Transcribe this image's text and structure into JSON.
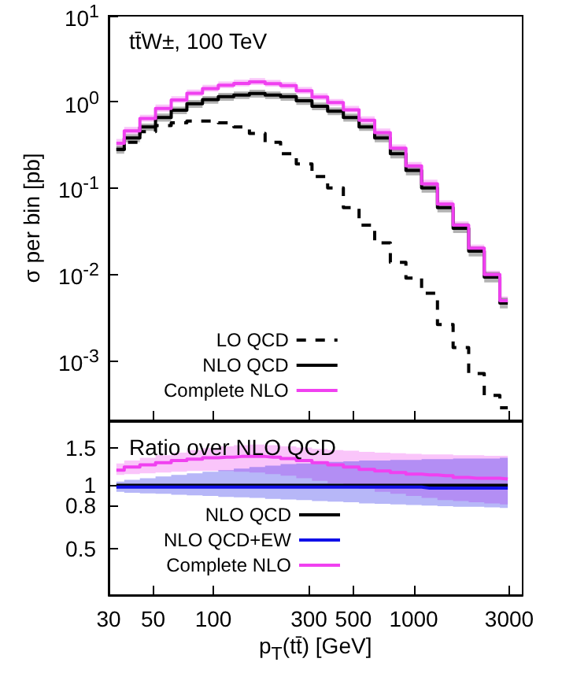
{
  "chart_data": [
    {
      "type": "step",
      "title": "tt̄W±, 100 TeV",
      "ylabel": "σ per bin [pb]",
      "log": "xy",
      "grid": false,
      "marker": "none",
      "legend": "bottom left",
      "tick_labels": "y",
      "xlim": [
        30,
        3500
      ],
      "xticks": [
        30,
        50,
        100,
        300,
        500,
        1000,
        3000
      ],
      "ylim": [
        0.0002,
        10
      ],
      "yticks": [
        {
          "value": 0.001,
          "label": "10$^{-3}$"
        },
        {
          "value": 0.01,
          "label": "10$^{-2}$"
        },
        {
          "value": 0.1,
          "label": "10$^{-1}$"
        },
        {
          "value": 1,
          "label": "10$^{0}$"
        },
        {
          "value": 10,
          "label": "10$^{1}$"
        }
      ],
      "x": [
        32.8,
        39.3,
        47.0,
        56.3,
        67.4,
        80.7,
        96.6,
        116,
        138,
        166,
        198,
        237,
        284,
        340,
        407,
        488,
        584,
        699,
        837,
        1000,
        1200,
        1440,
        1720,
        2060,
        2460,
        2950
      ],
      "series": [
        {
          "name": "LO QCD",
          "color": "#000000",
          "line_style": "dashed",
          "values": [
            0.28,
            0.34,
            0.45,
            0.53,
            0.57,
            0.6,
            0.6,
            0.57,
            0.51,
            0.43,
            0.34,
            0.25,
            0.19,
            0.136,
            0.1,
            0.059,
            0.037,
            0.023,
            0.0137,
            0.009,
            0.006,
            0.0026,
            0.0014,
            0.0007,
            0.00039,
            0.00028
          ]
        },
        {
          "name": "NLO QCD",
          "color": "#000000",
          "values": [
            0.28,
            0.38,
            0.51,
            0.66,
            0.8,
            0.95,
            1.06,
            1.15,
            1.2,
            1.25,
            1.2,
            1.15,
            1.03,
            0.89,
            0.78,
            0.66,
            0.51,
            0.38,
            0.25,
            0.16,
            0.1,
            0.059,
            0.034,
            0.0185,
            0.0092,
            0.0046
          ],
          "lower": [
            0.25,
            0.34,
            0.46,
            0.59,
            0.72,
            0.85,
            0.95,
            1.03,
            1.08,
            1.12,
            1.08,
            1.03,
            0.92,
            0.8,
            0.7,
            0.59,
            0.46,
            0.34,
            0.22,
            0.14,
            0.088,
            0.052,
            0.03,
            0.016,
            0.008,
            0.004
          ],
          "upper": [
            0.31,
            0.42,
            0.56,
            0.73,
            0.88,
            1.05,
            1.17,
            1.27,
            1.32,
            1.38,
            1.32,
            1.27,
            1.14,
            0.98,
            0.86,
            0.73,
            0.56,
            0.42,
            0.28,
            0.18,
            0.113,
            0.067,
            0.039,
            0.021,
            0.0106,
            0.0053
          ]
        },
        {
          "name": "Complete NLO",
          "color": "#f040f0",
          "values": [
            0.33,
            0.46,
            0.64,
            0.84,
            1.05,
            1.26,
            1.43,
            1.56,
            1.64,
            1.71,
            1.63,
            1.54,
            1.35,
            1.14,
            0.98,
            0.81,
            0.61,
            0.44,
            0.29,
            0.18,
            0.112,
            0.065,
            0.037,
            0.02,
            0.0099,
            0.0049
          ],
          "lower": [
            0.3,
            0.42,
            0.59,
            0.77,
            0.97,
            1.16,
            1.32,
            1.44,
            1.51,
            1.57,
            1.5,
            1.42,
            1.24,
            1.05,
            0.9,
            0.75,
            0.56,
            0.4,
            0.27,
            0.165,
            0.103,
            0.06,
            0.034,
            0.0184,
            0.0091,
            0.0045
          ],
          "upper": [
            0.37,
            0.51,
            0.71,
            0.93,
            1.16,
            1.39,
            1.58,
            1.72,
            1.81,
            1.89,
            1.8,
            1.7,
            1.49,
            1.26,
            1.08,
            0.9,
            0.68,
            0.49,
            0.32,
            0.2,
            0.125,
            0.072,
            0.041,
            0.022,
            0.011,
            0.0055
          ]
        }
      ]
    },
    {
      "type": "step",
      "title": "Ratio over NLO QCD",
      "xlabel": "p$_{T}$(tt̄) [GeV]",
      "log": "xy",
      "grid": false,
      "marker": "none",
      "legend": "bottom left",
      "xlim": [
        30,
        3500
      ],
      "xticks": [
        30,
        50,
        100,
        300,
        500,
        1000,
        3000
      ],
      "ylim": [
        0.3,
        2
      ],
      "yticks": [
        0.5,
        0.8,
        1,
        1.5
      ],
      "x": [
        32.8,
        39.3,
        47.0,
        56.3,
        67.4,
        80.7,
        96.6,
        116,
        138,
        166,
        198,
        237,
        284,
        340,
        407,
        488,
        584,
        699,
        837,
        1000,
        1200,
        1440,
        1720,
        2060,
        2460,
        2950
      ],
      "series": [
        {
          "name": "NLO QCD",
          "color": "#000000",
          "values": [
            1,
            1,
            1,
            1,
            1,
            1,
            1,
            1,
            1,
            1,
            1,
            1,
            1,
            1,
            1,
            1,
            1,
            1,
            1,
            1,
            1,
            1,
            1,
            1,
            1,
            1
          ]
        },
        {
          "name": "NLO QCD+EW",
          "color": "#1010e8",
          "values": [
            0.98,
            0.98,
            0.98,
            0.98,
            0.98,
            0.98,
            0.98,
            0.98,
            0.98,
            0.98,
            0.98,
            0.98,
            0.98,
            0.98,
            0.98,
            0.98,
            0.98,
            0.98,
            0.98,
            0.98,
            0.97,
            0.97,
            0.97,
            0.97,
            0.97,
            0.97
          ],
          "lower": [
            0.93,
            0.92,
            0.915,
            0.91,
            0.9,
            0.895,
            0.89,
            0.88,
            0.875,
            0.87,
            0.86,
            0.855,
            0.85,
            0.84,
            0.835,
            0.83,
            0.82,
            0.815,
            0.81,
            0.805,
            0.8,
            0.795,
            0.79,
            0.79,
            0.785,
            0.78
          ],
          "upper": [
            1.04,
            1.06,
            1.08,
            1.1,
            1.12,
            1.14,
            1.16,
            1.18,
            1.2,
            1.22,
            1.24,
            1.26,
            1.27,
            1.28,
            1.29,
            1.3,
            1.31,
            1.31,
            1.32,
            1.32,
            1.33,
            1.33,
            1.34,
            1.34,
            1.34,
            1.35
          ]
        },
        {
          "name": "Complete NLO",
          "color": "#f040f0",
          "values": [
            1.18,
            1.22,
            1.25,
            1.28,
            1.31,
            1.33,
            1.35,
            1.36,
            1.37,
            1.37,
            1.36,
            1.34,
            1.31,
            1.28,
            1.25,
            1.22,
            1.19,
            1.17,
            1.15,
            1.13,
            1.12,
            1.11,
            1.09,
            1.08,
            1.08,
            1.07
          ],
          "lower": [
            1.12,
            1.13,
            1.14,
            1.15,
            1.16,
            1.17,
            1.17,
            1.17,
            1.16,
            1.15,
            1.13,
            1.11,
            1.08,
            1.05,
            1.02,
            0.99,
            0.96,
            0.93,
            0.91,
            0.89,
            0.87,
            0.85,
            0.84,
            0.83,
            0.82,
            0.81
          ],
          "upper": [
            1.27,
            1.31,
            1.35,
            1.39,
            1.43,
            1.47,
            1.5,
            1.53,
            1.55,
            1.56,
            1.55,
            1.53,
            1.51,
            1.49,
            1.47,
            1.46,
            1.44,
            1.43,
            1.42,
            1.41,
            1.4,
            1.4,
            1.39,
            1.39,
            1.38,
            1.38
          ]
        }
      ]
    }
  ]
}
